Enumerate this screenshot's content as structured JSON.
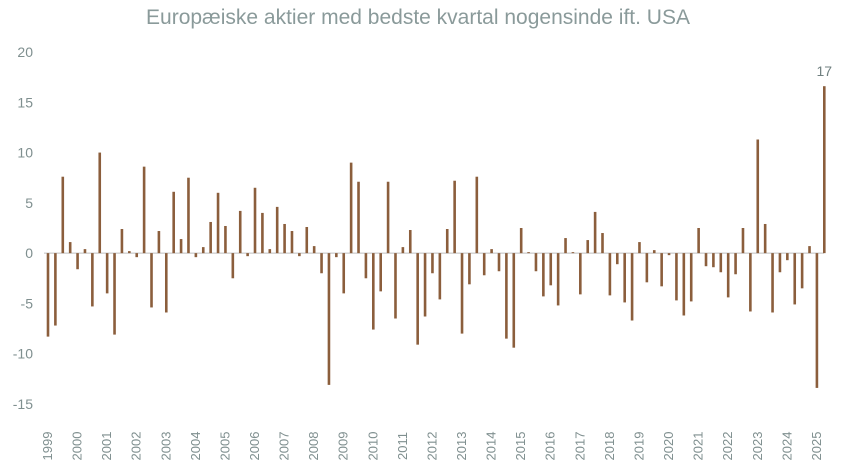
{
  "chart_data": {
    "type": "bar",
    "title": "Europæiske aktier med bedste kvartal nogensinde ift. USA",
    "xlabel": "",
    "ylabel": "",
    "ylim": [
      -15,
      20
    ],
    "yticks": [
      -15,
      -10,
      -5,
      0,
      5,
      10,
      15,
      20
    ],
    "grid": false,
    "legend": "none",
    "bar_color": "#8b5e3c",
    "axis_color": "#bfbfbf",
    "year_labels": [
      "1999",
      "2000",
      "2001",
      "2002",
      "2003",
      "2004",
      "2005",
      "2006",
      "2007",
      "2008",
      "2009",
      "2010",
      "2011",
      "2012",
      "2013",
      "2014",
      "2015",
      "2016",
      "2017",
      "2018",
      "2019",
      "2020",
      "2021",
      "2022",
      "2023",
      "2024",
      "2025"
    ],
    "values": [
      -8.3,
      -7.2,
      7.6,
      1.1,
      -1.6,
      0.4,
      -5.3,
      10.0,
      -4.0,
      -8.1,
      2.4,
      0.2,
      -0.4,
      8.6,
      -5.4,
      2.2,
      -5.9,
      6.1,
      1.4,
      7.5,
      -0.4,
      0.6,
      3.1,
      6.0,
      2.7,
      -2.5,
      4.2,
      -0.3,
      6.5,
      4.0,
      0.4,
      4.6,
      2.9,
      2.2,
      -0.3,
      2.6,
      0.7,
      -2.0,
      -13.1,
      -0.4,
      -4.0,
      9.0,
      7.1,
      -2.5,
      -7.6,
      -3.8,
      7.1,
      -6.5,
      0.6,
      2.3,
      -9.1,
      -6.3,
      -2.0,
      -4.6,
      2.4,
      7.2,
      -8.0,
      -3.1,
      7.6,
      -2.2,
      0.4,
      -1.8,
      -8.5,
      -9.4,
      2.5,
      0.1,
      -1.8,
      -4.3,
      -3.2,
      -5.2,
      1.5,
      0.1,
      -4.1,
      1.3,
      4.1,
      2.0,
      -4.2,
      -1.1,
      -4.9,
      -6.7,
      1.1,
      -2.9,
      0.3,
      -3.3,
      -0.2,
      -4.7,
      -6.2,
      -4.8,
      2.5,
      -1.3,
      -1.4,
      -1.9,
      -4.4,
      -2.1,
      2.5,
      -5.8,
      11.3,
      2.9,
      -5.9,
      -1.9,
      -0.7,
      -5.1,
      -3.5,
      0.7,
      -13.4,
      16.6
    ],
    "annotations": [
      {
        "index": 105,
        "text": "17"
      }
    ]
  }
}
